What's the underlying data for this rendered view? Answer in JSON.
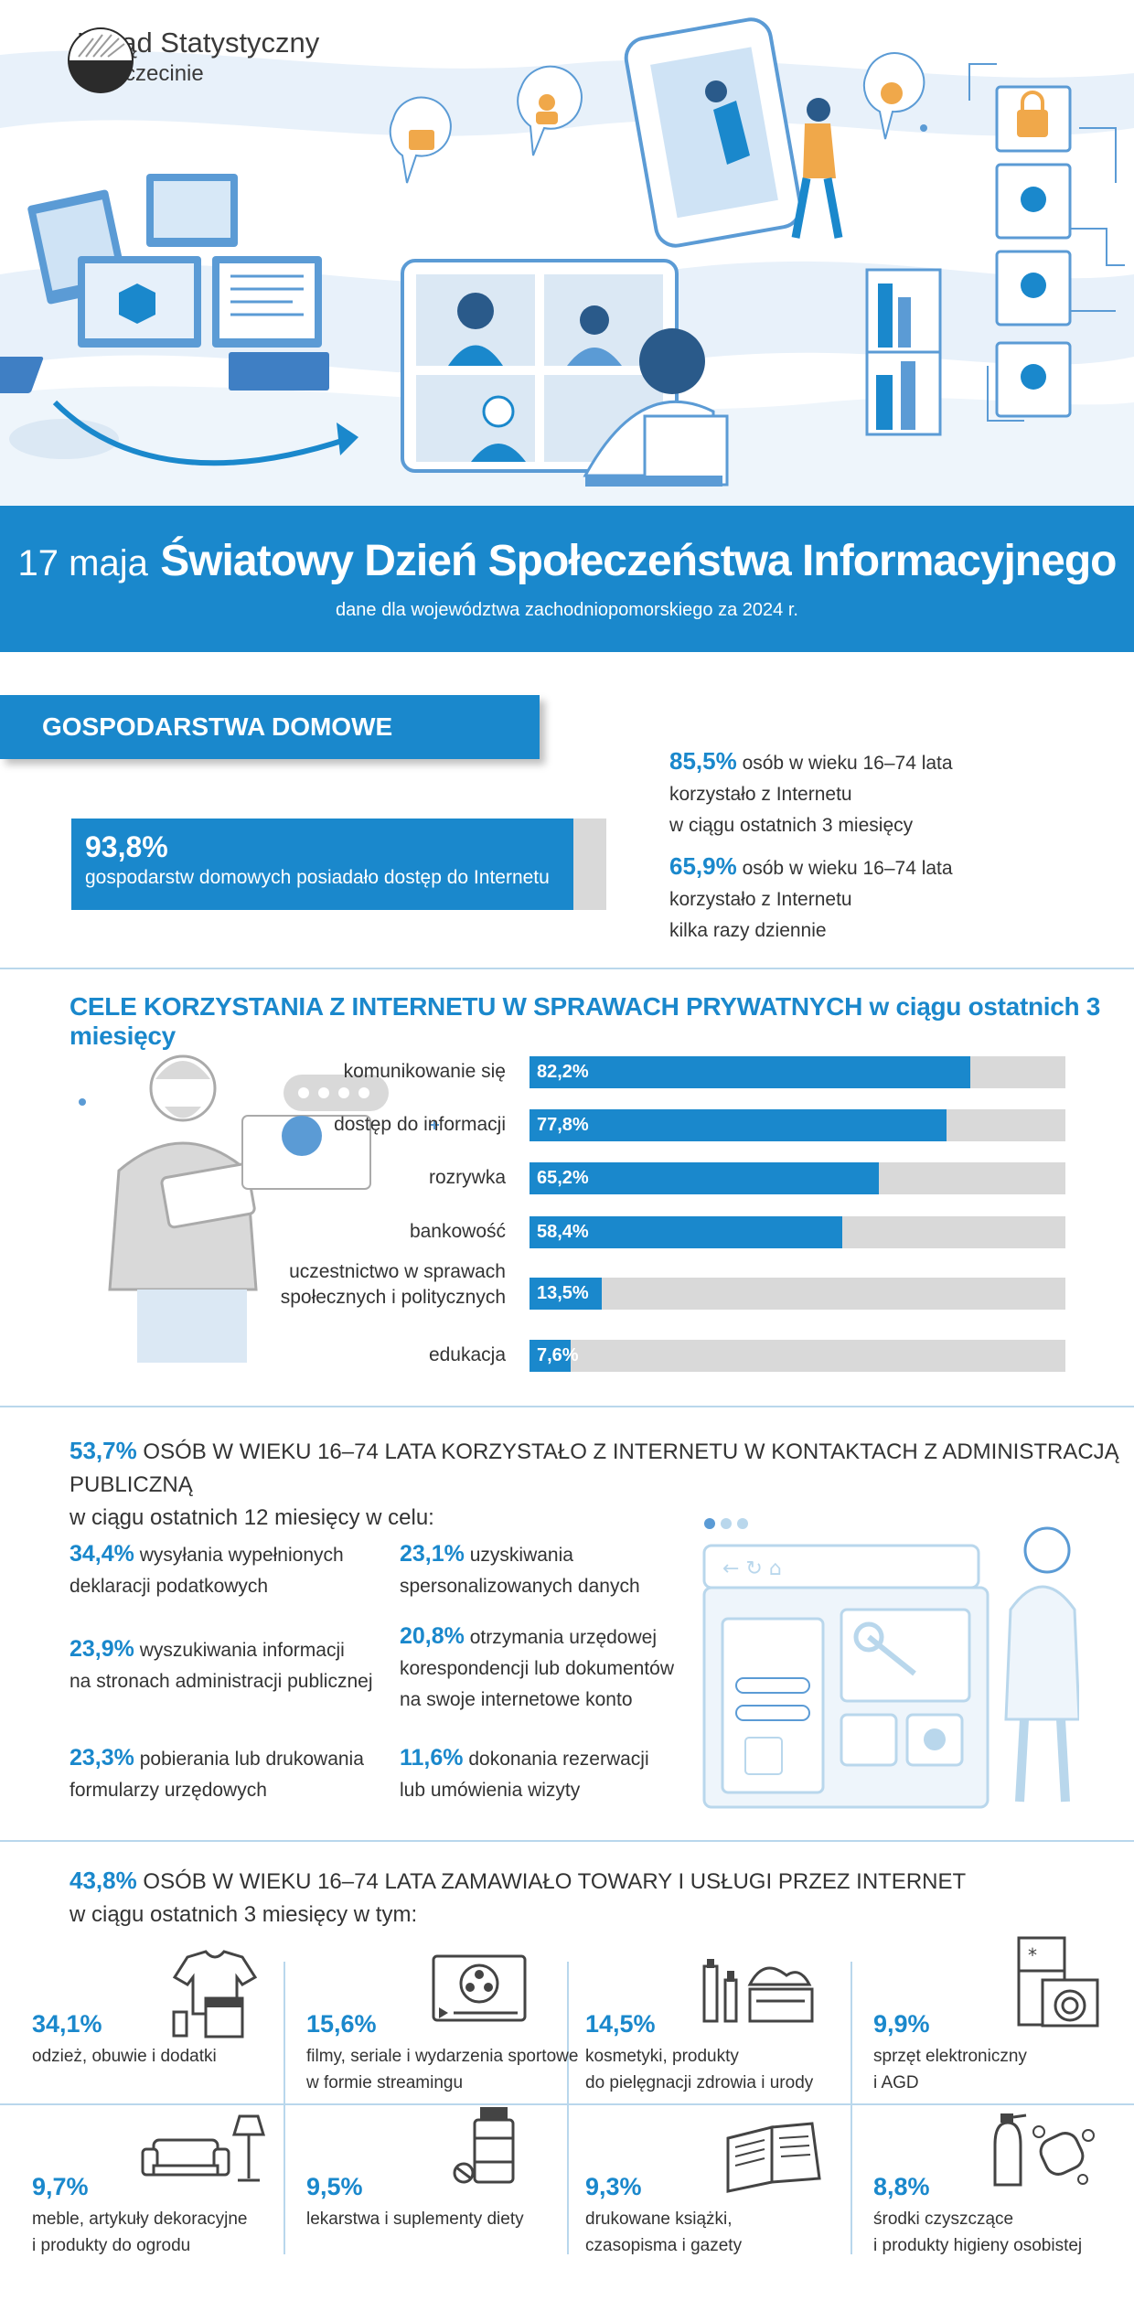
{
  "colors": {
    "accent": "#1a88cc",
    "track": "#d9d9d9",
    "light_blue": "#b9d7ec",
    "text": "#333333"
  },
  "logo": {
    "line1": "Urząd Statystyczny",
    "line2": "w Szczecinie",
    "icon": "us-szczecin-logo"
  },
  "banner": {
    "date": "17 maja",
    "title": "Światowy Dzień Społeczeństwa Informacyjnego",
    "subtitle": "dane dla województwa zachodniopomorskiego za 2024 r."
  },
  "households": {
    "tag": "GOSPODARSTWA DOMOWE",
    "internet_access": {
      "value": 93.8,
      "pct": "93,8%",
      "desc": "gospodarstw domowych posiadało dostęp do Internetu"
    },
    "stats": [
      {
        "pct": "85,5%",
        "line1": "osób w wieku 16–74 lata",
        "line2": "korzystało z Internetu",
        "line3": "w ciągu ostatnich 3 miesięcy"
      },
      {
        "pct": "65,9%",
        "line1": "osób w wieku 16–74 lata",
        "line2": "korzystało z Internetu",
        "line3": "kilka razy dziennie"
      }
    ]
  },
  "purposes": {
    "title": "CELE KORZYSTANIA Z INTERNETU W SPRAWACH PRYWATNYCH",
    "title_suffix": "w ciągu ostatnich 3 miesięcy",
    "bars": [
      {
        "label": "komunikowanie się",
        "value": 82.2,
        "text": "82,2%"
      },
      {
        "label": "dostęp do informacji",
        "value": 77.8,
        "text": "77,8%"
      },
      {
        "label": "rozrywka",
        "value": 65.2,
        "text": "65,2%"
      },
      {
        "label": "bankowość",
        "value": 58.4,
        "text": "58,4%"
      },
      {
        "label": "uczestnictwo w sprawach",
        "label2": "społecznych i politycznych",
        "value": 13.5,
        "text": "13,5%"
      },
      {
        "label": "edukacja",
        "value": 7.6,
        "text": "7,6%"
      }
    ]
  },
  "admin": {
    "pct": "53,7%",
    "line1": "OSÓB W WIEKU 16–74 LATA KORZYSTAŁO Z INTERNETU W KONTAKTACH Z ADMINISTRACJĄ PUBLICZNĄ",
    "line2": "w ciągu ostatnich 12 miesięcy w celu:",
    "items": [
      {
        "pct": "34,4%",
        "l1": "wysyłania wypełnionych",
        "l2": "deklaracji podatkowych"
      },
      {
        "pct": "23,9%",
        "l1": "wyszukiwania informacji",
        "l2": "na stronach administracji publicznej"
      },
      {
        "pct": "23,3%",
        "l1": "pobierania lub drukowania",
        "l2": "formularzy urzędowych"
      },
      {
        "pct": "23,1%",
        "l1": "uzyskiwania",
        "l2": "spersonalizowanych danych"
      },
      {
        "pct": "20,8%",
        "l1": "otrzymania urzędowej",
        "l2": "korespondencji lub dokumentów",
        "l3": "na swoje internetowe konto"
      },
      {
        "pct": "11,6%",
        "l1": "dokonania rezerwacji",
        "l2": "lub umówienia wizyty"
      }
    ]
  },
  "shopping": {
    "pct": "43,8%",
    "line1": "OSÓB W WIEKU 16–74 LATA ZAMAWIAŁO TOWARY I USŁUGI PRZEZ INTERNET",
    "line2": "w ciągu ostatnich 3 miesięcy w tym:",
    "items": [
      {
        "pct": "34,1%",
        "l1": "odzież, obuwie i dodatki",
        "icon": "clothes-icon"
      },
      {
        "pct": "15,6%",
        "l1": "filmy, seriale i wydarzenia sportowe",
        "l2": "w formie streamingu",
        "icon": "film-reel-icon"
      },
      {
        "pct": "14,5%",
        "l1": "kosmetyki, produkty",
        "l2": "do pielęgnacji zdrowia i urody",
        "icon": "cosmetics-icon"
      },
      {
        "pct": "9,9%",
        "l1": "sprzęt elektroniczny",
        "l2": "i AGD",
        "icon": "appliances-icon"
      },
      {
        "pct": "9,7%",
        "l1": "meble, artykuły dekoracyjne",
        "l2": "i produkty do ogrodu",
        "icon": "sofa-lamp-icon"
      },
      {
        "pct": "9,5%",
        "l1": "lekarstwa i suplementy diety",
        "icon": "medicine-icon"
      },
      {
        "pct": "9,3%",
        "l1": "drukowane książki,",
        "l2": "czasopisma i gazety",
        "icon": "book-icon"
      },
      {
        "pct": "8,8%",
        "l1": "środki czyszczące",
        "l2": "i produkty higieny osobistej",
        "icon": "cleaning-icon"
      }
    ]
  }
}
